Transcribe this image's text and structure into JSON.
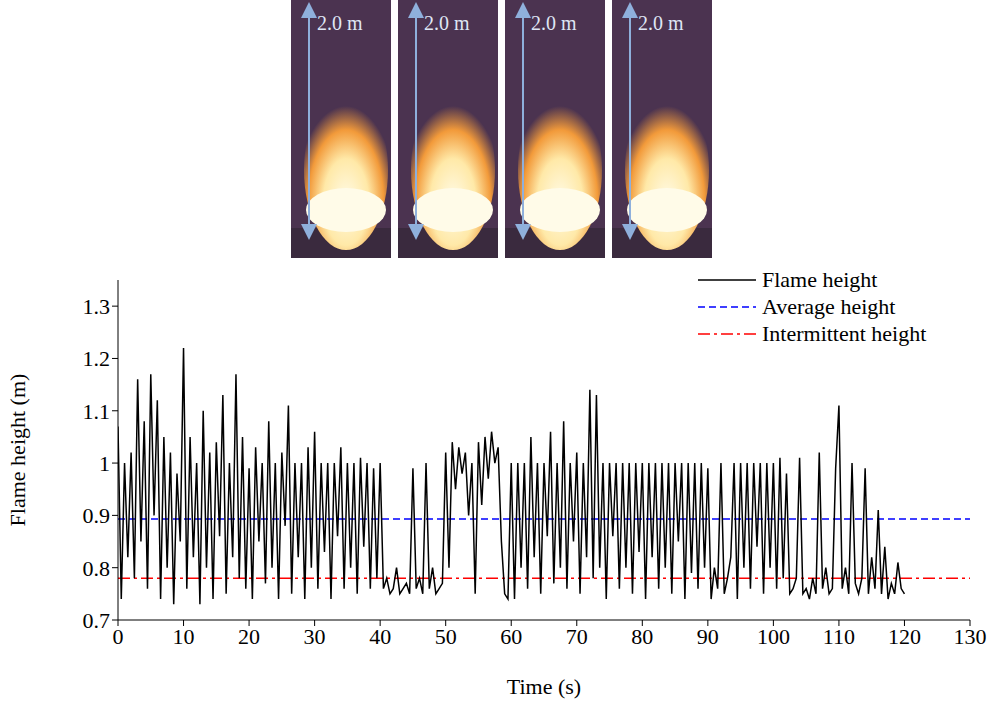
{
  "photos": [
    {
      "label": "2.0 m"
    },
    {
      "label": "2.0 m"
    },
    {
      "label": "2.0 m"
    },
    {
      "label": "2.0 m"
    }
  ],
  "chart_data": {
    "type": "line",
    "x_label": "Time (s)",
    "y_label": "Flame height (m)",
    "xlim": [
      0,
      130
    ],
    "xticks": [
      0,
      10,
      20,
      30,
      40,
      50,
      60,
      70,
      80,
      90,
      100,
      110,
      120,
      130
    ],
    "ylim": [
      0.7,
      1.35
    ],
    "yticks": [
      0.7,
      0.8,
      0.9,
      1,
      1.1,
      1.2,
      1.3
    ],
    "grid": false,
    "legend": "upper right",
    "x": [
      0,
      0.5,
      1,
      1.5,
      2,
      2.5,
      3,
      3.5,
      4,
      4.5,
      5,
      5.5,
      6,
      6.5,
      7,
      7.5,
      8,
      8.5,
      9,
      9.5,
      10,
      10.5,
      11,
      11.5,
      12,
      12.5,
      13,
      13.5,
      14,
      14.5,
      15,
      15.5,
      16,
      16.5,
      17,
      17.5,
      18,
      18.5,
      19,
      19.5,
      20,
      20.5,
      21,
      21.5,
      22,
      22.5,
      23,
      23.5,
      24,
      24.5,
      25,
      25.5,
      26,
      26.5,
      27,
      27.5,
      28,
      28.5,
      29,
      29.5,
      30,
      30.5,
      31,
      31.5,
      32,
      32.5,
      33,
      33.5,
      34,
      34.5,
      35,
      35.5,
      36,
      36.5,
      37,
      37.5,
      38,
      38.5,
      39,
      39.5,
      40,
      40.5,
      41,
      41.5,
      42,
      42.5,
      43,
      43.5,
      44,
      44.5,
      45,
      45.5,
      46,
      46.5,
      47,
      47.5,
      48,
      48.5,
      49,
      49.5,
      50,
      50.5,
      51,
      51.5,
      52,
      52.5,
      53,
      53.5,
      54,
      54.5,
      55,
      55.5,
      56,
      56.5,
      57,
      57.5,
      58,
      58.5,
      59,
      59.5,
      60,
      60.5,
      61,
      61.5,
      62,
      62.5,
      63,
      63.5,
      64,
      64.5,
      65,
      65.5,
      66,
      66.5,
      67,
      67.5,
      68,
      68.5,
      69,
      69.5,
      70,
      70.5,
      71,
      71.5,
      72,
      72.5,
      73,
      73.5,
      74,
      74.5,
      75,
      75.5,
      76,
      76.5,
      77,
      77.5,
      78,
      78.5,
      79,
      79.5,
      80,
      80.5,
      81,
      81.5,
      82,
      82.5,
      83,
      83.5,
      84,
      84.5,
      85,
      85.5,
      86,
      86.5,
      87,
      87.5,
      88,
      88.5,
      89,
      89.5,
      90,
      90.5,
      91,
      91.5,
      92,
      92.5,
      93,
      93.5,
      94,
      94.5,
      95,
      95.5,
      96,
      96.5,
      97,
      97.5,
      98,
      98.5,
      99,
      99.5,
      100,
      100.5,
      101,
      101.5,
      102,
      102.5,
      103,
      103.5,
      104,
      104.5,
      105,
      105.5,
      106,
      106.5,
      107,
      107.5,
      108,
      108.5,
      109,
      109.5,
      110,
      110.5,
      111,
      111.5,
      112,
      112.5,
      113,
      113.5,
      114,
      114.5,
      115,
      115.5,
      116,
      116.5,
      117,
      117.5,
      118,
      118.5,
      119,
      119.5,
      120
    ],
    "series": [
      {
        "name": "Flame height",
        "color": "#000000",
        "line_style": "solid",
        "values": [
          1.07,
          0.74,
          1.0,
          0.82,
          1.02,
          0.78,
          1.16,
          0.85,
          1.08,
          0.76,
          1.17,
          0.9,
          1.12,
          0.74,
          1.05,
          0.8,
          1.02,
          0.73,
          0.98,
          0.85,
          1.22,
          0.76,
          1.05,
          0.82,
          1.0,
          0.73,
          1.1,
          0.8,
          1.02,
          0.74,
          1.04,
          0.86,
          1.13,
          0.75,
          1.0,
          0.82,
          1.17,
          0.78,
          1.05,
          0.76,
          0.99,
          0.74,
          1.03,
          0.85,
          1.0,
          0.77,
          1.08,
          0.8,
          1.0,
          0.74,
          1.02,
          0.88,
          1.11,
          0.75,
          1.0,
          0.82,
          1.0,
          0.74,
          1.03,
          0.8,
          1.06,
          0.76,
          1.0,
          0.83,
          1.0,
          0.74,
          1.0,
          0.86,
          1.03,
          0.76,
          1.0,
          0.8,
          1.0,
          0.75,
          1.01,
          0.84,
          1.0,
          0.76,
          0.99,
          0.78,
          1.0,
          0.76,
          0.78,
          0.75,
          0.76,
          0.8,
          0.75,
          0.76,
          0.77,
          0.75,
          0.99,
          0.76,
          0.78,
          0.75,
          1.0,
          0.76,
          0.8,
          0.75,
          0.76,
          0.77,
          1.02,
          0.8,
          1.04,
          0.95,
          1.03,
          0.98,
          1.02,
          0.9,
          1.0,
          0.75,
          1.04,
          0.92,
          1.05,
          0.97,
          1.06,
          1.0,
          1.03,
          0.85,
          0.75,
          0.74,
          1.0,
          0.74,
          1.0,
          0.8,
          1.0,
          0.76,
          1.05,
          0.82,
          1.0,
          0.75,
          1.0,
          0.86,
          1.06,
          0.77,
          1.0,
          0.8,
          1.08,
          0.76,
          1.0,
          0.85,
          1.02,
          0.75,
          1.0,
          0.82,
          1.14,
          0.78,
          1.13,
          0.8,
          1.0,
          0.74,
          1.0,
          0.86,
          1.0,
          0.76,
          1.0,
          0.8,
          1.0,
          0.75,
          1.0,
          0.83,
          1.0,
          0.74,
          1.0,
          0.82,
          1.0,
          0.76,
          1.0,
          0.8,
          1.0,
          0.75,
          1.0,
          0.85,
          1.0,
          0.74,
          1.0,
          0.79,
          1.0,
          0.76,
          1.0,
          0.8,
          0.99,
          0.74,
          0.8,
          0.76,
          1.0,
          0.75,
          0.78,
          0.82,
          1.0,
          0.74,
          1.0,
          0.8,
          1.0,
          0.76,
          1.0,
          0.84,
          1.0,
          0.75,
          1.0,
          0.8,
          1.0,
          0.76,
          1.01,
          0.78,
          0.98,
          0.75,
          0.76,
          0.78,
          1.01,
          0.75,
          0.76,
          0.74,
          0.78,
          0.75,
          1.02,
          0.76,
          0.8,
          0.75,
          0.76,
          0.99,
          1.11,
          0.76,
          0.8,
          0.75,
          1.0,
          0.77,
          0.75,
          0.78,
          0.99,
          0.75,
          0.82,
          0.76,
          0.91,
          0.75,
          0.84,
          0.74,
          0.77,
          0.75,
          0.81,
          0.76,
          0.75
        ]
      }
    ],
    "reference_lines": [
      {
        "name": "Average height",
        "color": "#0000ff",
        "line_style": "dashed",
        "y": 0.893
      },
      {
        "name": "Intermittent height",
        "color": "#ff0000",
        "line_style": "dashdot",
        "y": 0.78
      }
    ]
  }
}
